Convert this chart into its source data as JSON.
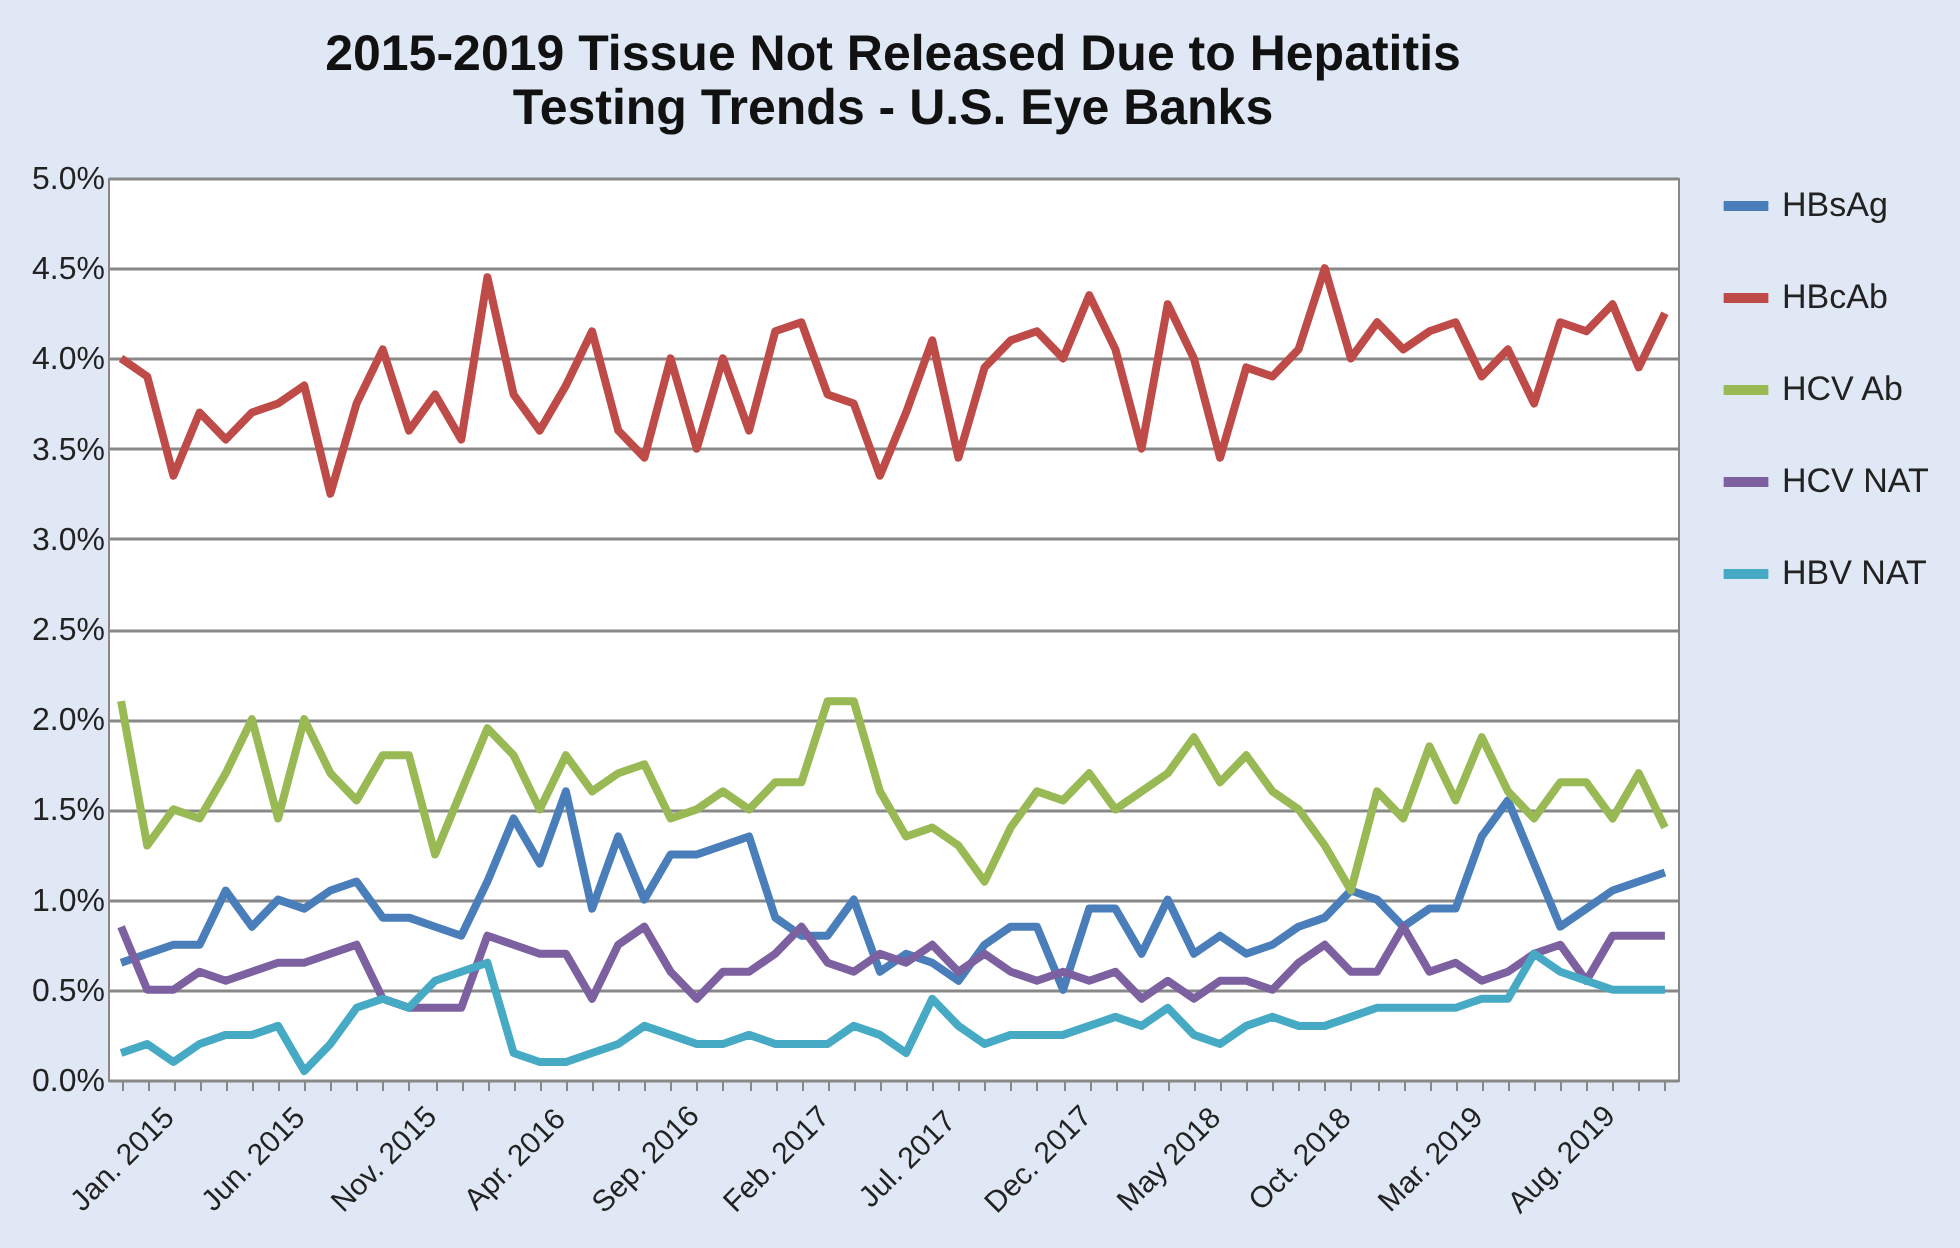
{
  "chart_data": {
    "type": "line",
    "title": "2015-2019 Tissue Not Released Due to Hepatitis\nTesting Trends - U.S. Eye Banks",
    "categories": [
      "Jan. 2015",
      null,
      null,
      null,
      null,
      "Jun. 2015",
      null,
      null,
      null,
      null,
      "Nov. 2015",
      null,
      null,
      null,
      null,
      "Apr. 2016",
      null,
      null,
      null,
      null,
      "Sep. 2016",
      null,
      null,
      null,
      null,
      "Feb. 2017",
      null,
      null,
      null,
      null,
      "Jul. 2017",
      null,
      null,
      null,
      null,
      "Dec. 2017",
      null,
      null,
      null,
      null,
      "May 2018",
      null,
      null,
      null,
      null,
      "Oct. 2018",
      null,
      null,
      null,
      null,
      "Mar. 2019",
      null,
      null,
      null,
      null,
      "Aug. 2019",
      null,
      null,
      null,
      null
    ],
    "series": [
      {
        "name": "HBsAg",
        "color": "#4a7ebb",
        "values": [
          0.65,
          0.7,
          0.75,
          0.75,
          1.05,
          0.85,
          1.0,
          0.95,
          1.05,
          1.1,
          0.9,
          0.9,
          0.85,
          0.8,
          1.1,
          1.45,
          1.2,
          1.6,
          0.95,
          1.35,
          1.0,
          1.25,
          1.25,
          1.3,
          1.35,
          0.9,
          0.8,
          0.8,
          1.0,
          0.6,
          0.7,
          0.65,
          0.55,
          0.75,
          0.85,
          0.85,
          0.5,
          0.95,
          0.95,
          0.7,
          1.0,
          0.7,
          0.8,
          0.7,
          0.75,
          0.85,
          0.9,
          1.05,
          1.0,
          0.85,
          0.95,
          0.95,
          1.35,
          1.55,
          1.2,
          0.85,
          0.95,
          1.05,
          1.1,
          1.15
        ]
      },
      {
        "name": "HBcAb",
        "color": "#be4b48",
        "values": [
          4.0,
          3.9,
          3.35,
          3.7,
          3.55,
          3.7,
          3.75,
          3.85,
          3.25,
          3.75,
          4.05,
          3.6,
          3.8,
          3.55,
          4.45,
          3.8,
          3.6,
          3.85,
          4.15,
          3.6,
          3.45,
          4.0,
          3.5,
          4.0,
          3.6,
          4.15,
          4.2,
          3.8,
          3.75,
          3.35,
          3.7,
          4.1,
          3.45,
          3.95,
          4.1,
          4.15,
          4.0,
          4.35,
          4.05,
          3.5,
          4.3,
          4.0,
          3.45,
          3.95,
          3.9,
          4.05,
          4.5,
          4.0,
          4.2,
          4.05,
          4.15,
          4.2,
          3.9,
          4.05,
          3.75,
          4.2,
          4.15,
          4.3,
          3.95,
          4.25
        ]
      },
      {
        "name": "HCV Ab",
        "color": "#98b954",
        "values": [
          2.1,
          1.3,
          1.5,
          1.45,
          1.7,
          2.0,
          1.45,
          2.0,
          1.7,
          1.55,
          1.8,
          1.8,
          1.25,
          1.6,
          1.95,
          1.8,
          1.5,
          1.8,
          1.6,
          1.7,
          1.75,
          1.45,
          1.5,
          1.6,
          1.5,
          1.65,
          1.65,
          2.1,
          2.1,
          1.6,
          1.35,
          1.4,
          1.3,
          1.1,
          1.4,
          1.6,
          1.55,
          1.7,
          1.5,
          1.6,
          1.7,
          1.9,
          1.65,
          1.8,
          1.6,
          1.5,
          1.3,
          1.05,
          1.6,
          1.45,
          1.85,
          1.55,
          1.9,
          1.6,
          1.45,
          1.65,
          1.65,
          1.45,
          1.7,
          1.4
        ]
      },
      {
        "name": "HCV NAT",
        "color": "#7d60a0",
        "values": [
          0.85,
          0.5,
          0.5,
          0.6,
          0.55,
          0.6,
          0.65,
          0.65,
          0.7,
          0.75,
          0.45,
          0.4,
          0.4,
          0.4,
          0.8,
          0.75,
          0.7,
          0.7,
          0.45,
          0.75,
          0.85,
          0.6,
          0.45,
          0.6,
          0.6,
          0.7,
          0.85,
          0.65,
          0.6,
          0.7,
          0.65,
          0.75,
          0.6,
          0.7,
          0.6,
          0.55,
          0.6,
          0.55,
          0.6,
          0.45,
          0.55,
          0.45,
          0.55,
          0.55,
          0.5,
          0.65,
          0.75,
          0.6,
          0.6,
          0.85,
          0.6,
          0.65,
          0.55,
          0.6,
          0.7,
          0.75,
          0.55,
          0.8,
          0.8,
          0.8
        ]
      },
      {
        "name": "HBV NAT",
        "color": "#46aac5",
        "values": [
          0.15,
          0.2,
          0.1,
          0.2,
          0.25,
          0.25,
          0.3,
          0.05,
          0.2,
          0.4,
          0.45,
          0.4,
          0.55,
          0.6,
          0.65,
          0.15,
          0.1,
          0.1,
          0.15,
          0.2,
          0.3,
          0.25,
          0.2,
          0.2,
          0.25,
          0.2,
          0.2,
          0.2,
          0.3,
          0.25,
          0.15,
          0.45,
          0.3,
          0.2,
          0.25,
          0.25,
          0.25,
          0.3,
          0.35,
          0.3,
          0.4,
          0.25,
          0.2,
          0.3,
          0.35,
          0.3,
          0.3,
          0.35,
          0.4,
          0.4,
          0.4,
          0.4,
          0.45,
          0.45,
          0.7,
          0.6,
          0.55,
          0.5,
          0.5,
          0.5
        ]
      }
    ],
    "ylim": [
      0,
      5
    ],
    "yticks": [
      {
        "value": 0,
        "label": "0.0%"
      },
      {
        "value": 0.5,
        "label": "0.5%"
      },
      {
        "value": 1,
        "label": "1.0%"
      },
      {
        "value": 1.5,
        "label": "1.5%"
      },
      {
        "value": 2,
        "label": "2.0%"
      },
      {
        "value": 2.5,
        "label": "2.5%"
      },
      {
        "value": 3,
        "label": "3.0%"
      },
      {
        "value": 3.5,
        "label": "3.5%"
      },
      {
        "value": 4,
        "label": "4.0%"
      },
      {
        "value": 4.5,
        "label": "4.5%"
      },
      {
        "value": 5,
        "label": "5.0%"
      }
    ],
    "grid": "y",
    "legend": "right",
    "marker": "none",
    "line_style": "solid"
  }
}
